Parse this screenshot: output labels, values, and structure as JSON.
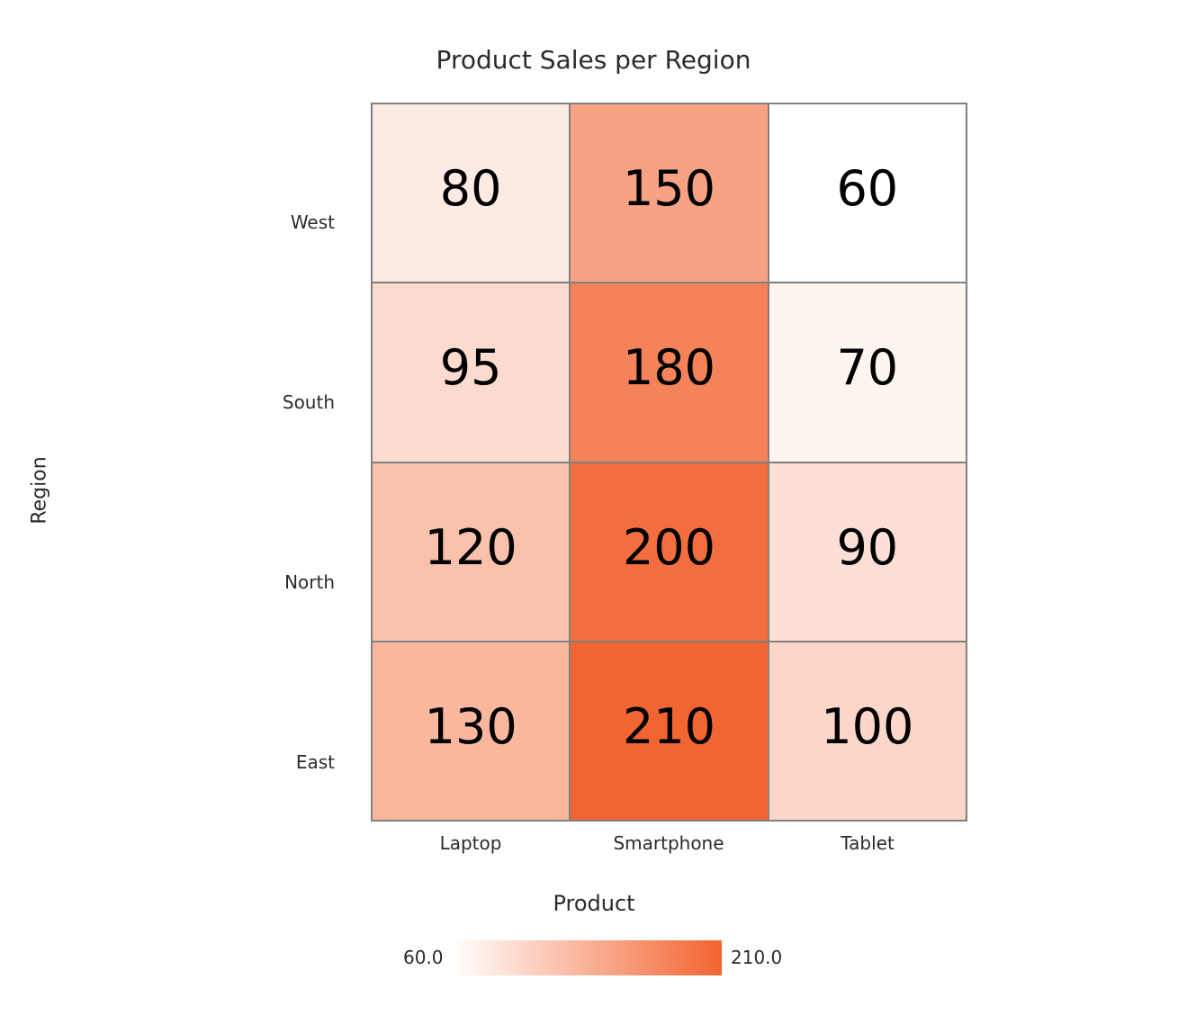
{
  "title": "Product Sales per Region",
  "xlabel": "Product",
  "ylabel": "Region",
  "columns": [
    "Laptop",
    "Smartphone",
    "Tablet"
  ],
  "rows": [
    "West",
    "South",
    "North",
    "East"
  ],
  "colorbar": {
    "min_label": "60.0",
    "max_label": "210.0",
    "min_color": "#ffffff",
    "max_color": "#f26430"
  },
  "chart_data": {
    "type": "heatmap",
    "title": "Product Sales per Region",
    "xlabel": "Product",
    "ylabel": "Region",
    "x": [
      "Laptop",
      "Smartphone",
      "Tablet"
    ],
    "y": [
      "West",
      "South",
      "North",
      "East"
    ],
    "values": [
      [
        80,
        150,
        60
      ],
      [
        95,
        180,
        70
      ],
      [
        120,
        200,
        90
      ],
      [
        130,
        210,
        100
      ]
    ],
    "colorscale": {
      "min": 60,
      "max": 210,
      "min_color": "#ffffff",
      "max_color": "#f26430"
    },
    "legend": "colorbar bottom"
  }
}
